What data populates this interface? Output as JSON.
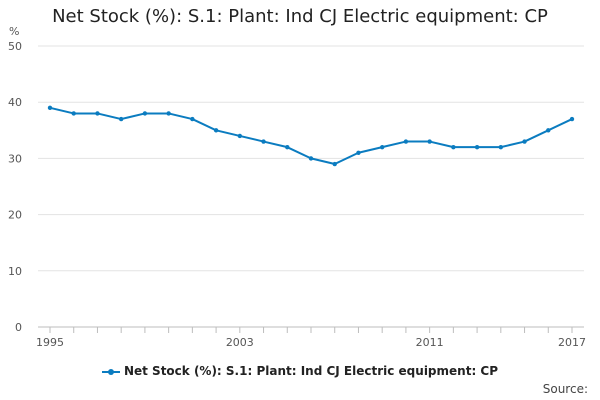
{
  "chart_data": {
    "type": "line",
    "title": "Net Stock (%): S.1: Plant: Ind CJ Electric equipment: CP",
    "ylabel": "%",
    "xlabel": "",
    "ylim": [
      0,
      50
    ],
    "yticks": [
      0,
      10,
      20,
      30,
      40,
      50
    ],
    "x": [
      1995,
      1996,
      1997,
      1998,
      1999,
      2000,
      2001,
      2002,
      2003,
      2004,
      2005,
      2006,
      2007,
      2008,
      2009,
      2010,
      2011,
      2012,
      2013,
      2014,
      2015,
      2016,
      2017
    ],
    "xtick_labels": [
      "1995",
      "2003",
      "2011",
      "2017"
    ],
    "grid": true,
    "legend_position": "bottom",
    "series": [
      {
        "name": "Net Stock (%): S.1: Plant: Ind CJ Electric equipment: CP",
        "color": "#0b7cc0",
        "values": [
          39,
          38,
          38,
          37,
          38,
          38,
          37,
          35,
          34,
          33,
          32,
          30,
          29,
          31,
          32,
          33,
          33,
          32,
          32,
          32,
          33,
          35,
          37
        ]
      }
    ]
  },
  "source_label": "Source:"
}
